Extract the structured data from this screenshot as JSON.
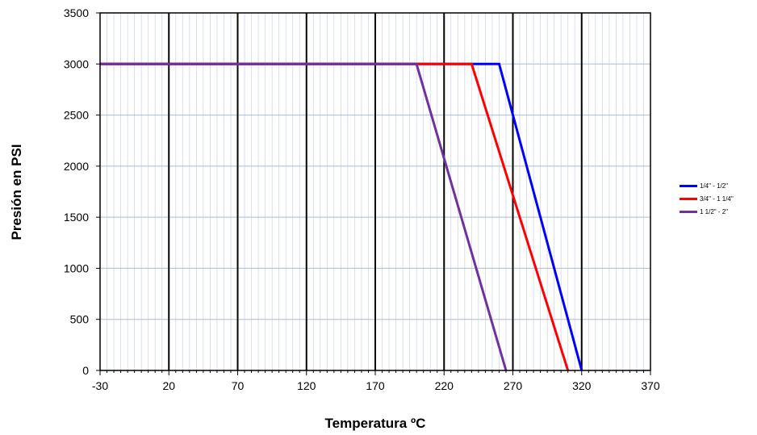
{
  "chart_data": {
    "type": "line",
    "xlabel": "Temperatura ºC",
    "ylabel": "Presión en PSI",
    "xlim": [
      -30,
      370
    ],
    "ylim": [
      0,
      3500
    ],
    "x_ticks": [
      -30,
      20,
      70,
      120,
      170,
      220,
      270,
      320,
      370
    ],
    "y_ticks": [
      0,
      500,
      1000,
      1500,
      2000,
      2500,
      3000,
      3500
    ],
    "x_minor_step": 5,
    "grid": true,
    "legend_position": "right",
    "series": [
      {
        "name": "1/4\" - 1/2\"",
        "color": "#0000ff",
        "points": [
          [
            -30,
            3000
          ],
          [
            260,
            3000
          ],
          [
            320,
            0
          ]
        ]
      },
      {
        "name": "3/4\" - 1 1/4\"",
        "color": "#ff0000",
        "points": [
          [
            -30,
            3000
          ],
          [
            240,
            3000
          ],
          [
            310,
            0
          ]
        ]
      },
      {
        "name": "1 1/2\" - 2\"",
        "color": "#7030a0",
        "points": [
          [
            -30,
            3000
          ],
          [
            200,
            3000
          ],
          [
            265,
            0
          ]
        ]
      }
    ]
  }
}
